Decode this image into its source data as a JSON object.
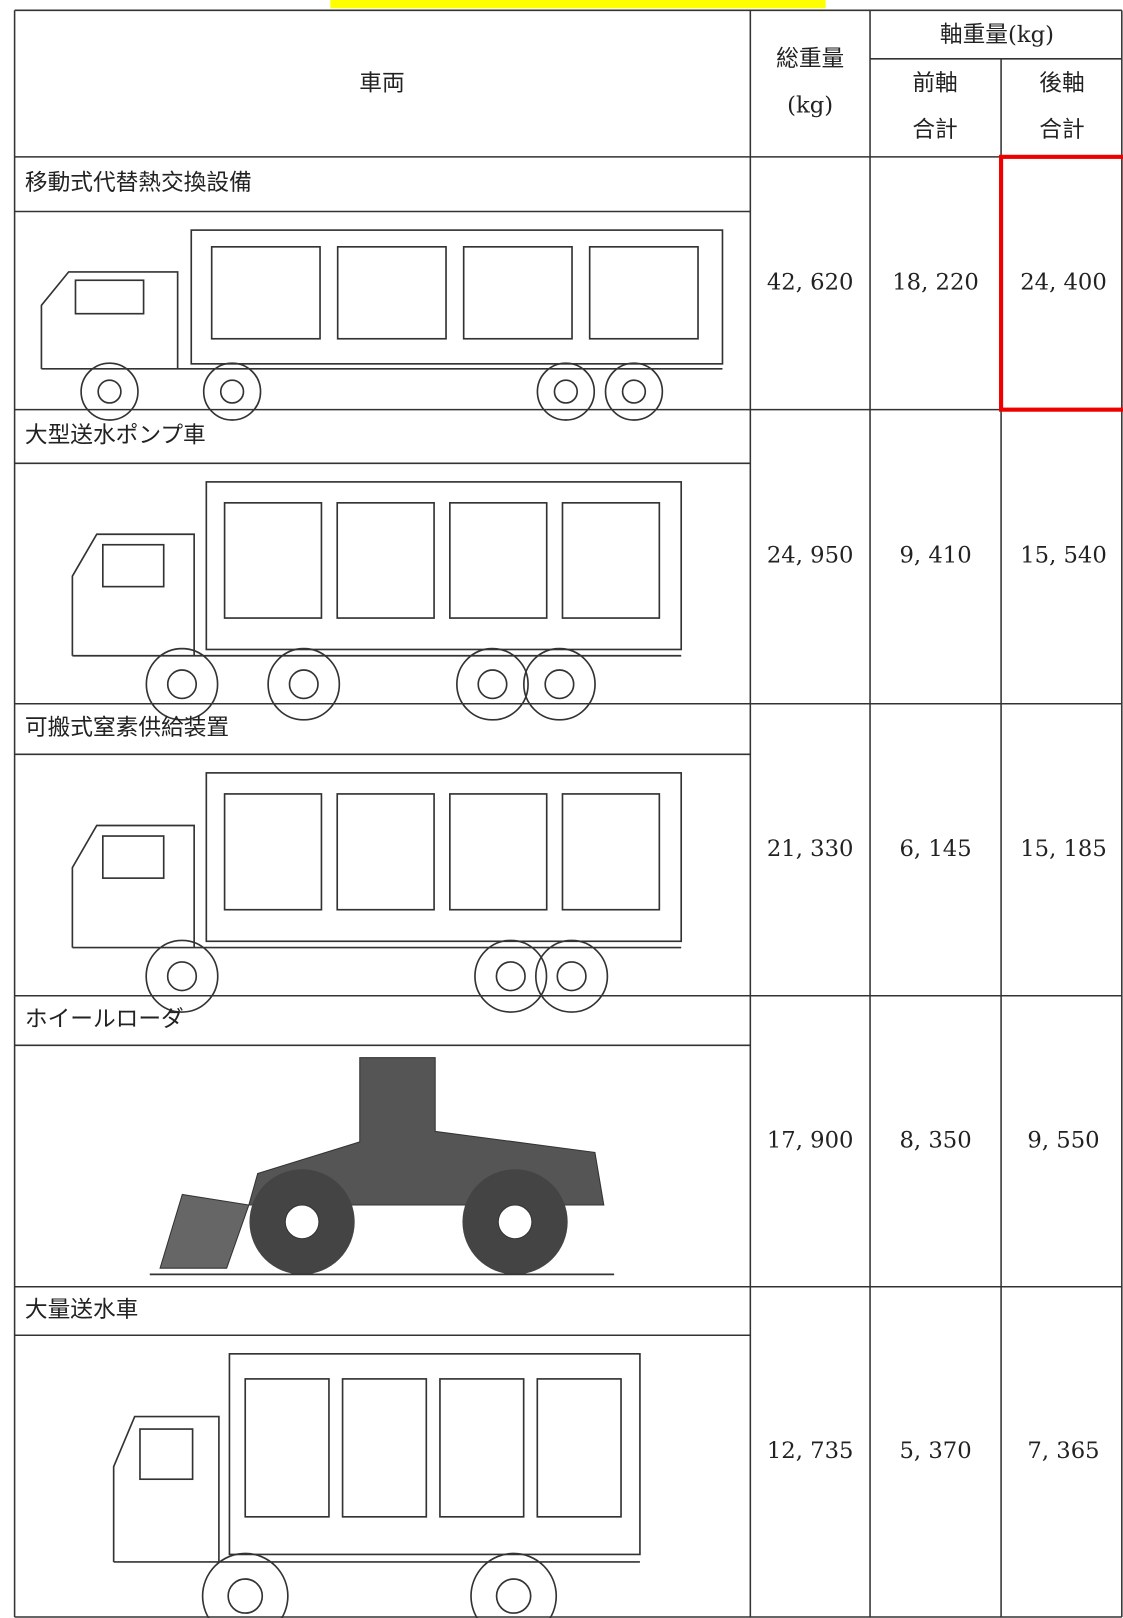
{
  "header": {
    "vehicle": "車両",
    "total_weight": "総重量",
    "total_unit": "(kg)",
    "axle_weight": "軸重量(kg)",
    "front_axle": [
      "前軸",
      "合計"
    ],
    "rear_axle": [
      "後軸",
      "合計"
    ]
  },
  "table": {
    "rows": [
      {
        "name": "移動式代替熱交換設備",
        "total": "42, 620",
        "front": "18, 220",
        "rear": "24, 400"
      },
      {
        "name": "大型送水ポンプ車",
        "total": "24, 950",
        "front": "9, 410",
        "rear": "15, 540"
      },
      {
        "name": "可搬式窒素供給装置",
        "total": "21, 330",
        "front": "6, 145",
        "rear": "15, 185"
      },
      {
        "name": "ホイールローダ",
        "total": "17, 900",
        "front": "8, 350",
        "rear": "9, 550"
      },
      {
        "name": "大量送水車",
        "total": "12, 735",
        "front": "5, 370",
        "rear": "7, 365"
      }
    ]
  }
}
